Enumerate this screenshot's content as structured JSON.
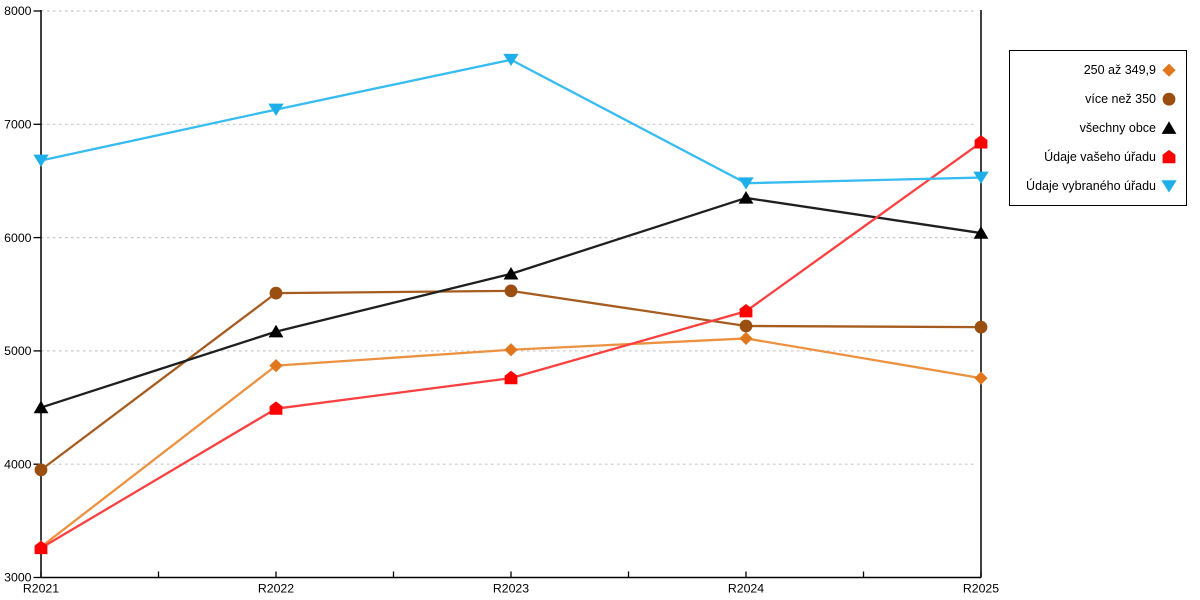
{
  "chart_data": {
    "type": "line",
    "title": "",
    "xlabel": "",
    "ylabel": "",
    "categories": [
      "R2021",
      "R2022",
      "R2023",
      "R2024",
      "R2025"
    ],
    "series": [
      {
        "name": "250 až 349,9",
        "marker": "diamond",
        "marker_color": "#E0771C",
        "line_color": "#EC9140",
        "values": [
          3270,
          4870,
          5010,
          5110,
          4760
        ]
      },
      {
        "name": "více než 350",
        "marker": "circle",
        "marker_color": "#9A4F10",
        "line_color": "#A65C1E",
        "values": [
          3950,
          5510,
          5530,
          5220,
          5210
        ]
      },
      {
        "name": "všechny obce",
        "marker": "triangle-up",
        "marker_color": "#000000",
        "line_color": "#1F1F1F",
        "values": [
          4500,
          5170,
          5680,
          6350,
          6040
        ]
      },
      {
        "name": "Údaje vašeho úřadu",
        "marker": "pentagon",
        "marker_color": "#FE0000",
        "line_color": "#FB4040",
        "values": [
          3260,
          4490,
          4760,
          5350,
          6840
        ]
      },
      {
        "name": "Údaje vybraného úřadu",
        "marker": "triangle-down",
        "marker_color": "#1EAFEA",
        "line_color": "#36BCF0",
        "values": [
          6680,
          7130,
          7570,
          6480,
          6530
        ]
      }
    ],
    "ylim": [
      3000,
      8000
    ],
    "yticks": [
      3000,
      4000,
      5000,
      6000,
      7000,
      8000
    ],
    "grid": "dotted-horizontal",
    "legend_position": "right"
  },
  "colors": {
    "background": "#FFFFFF",
    "grid": "#C8C8C8",
    "axis": "#000000",
    "legend_border": "#000000",
    "text": "#000000"
  }
}
